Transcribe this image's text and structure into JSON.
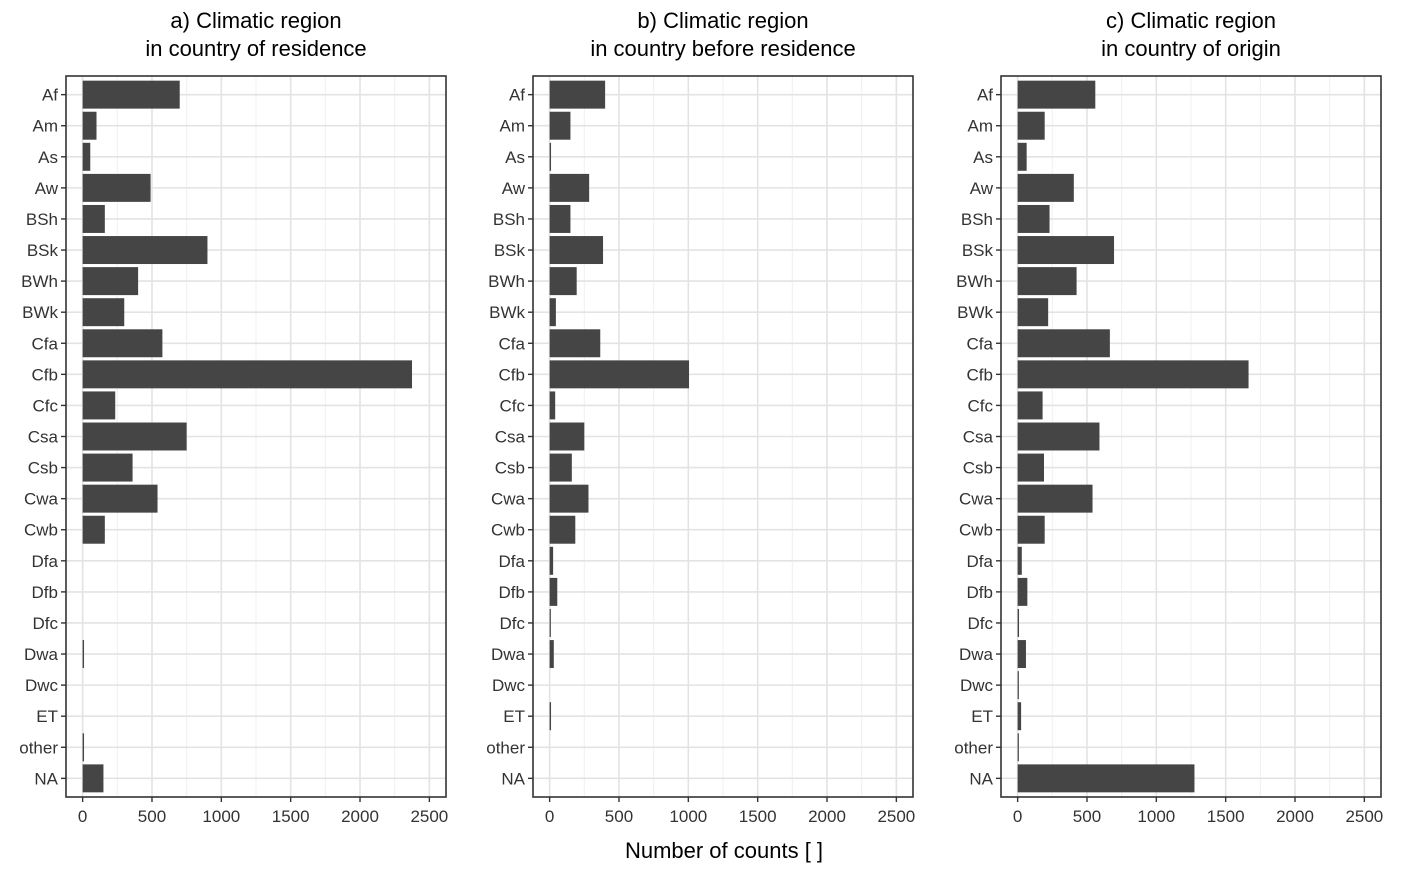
{
  "chart_data": [
    {
      "type": "bar",
      "orientation": "horizontal",
      "title": "a) Climatic region\nin country of residence",
      "categories": [
        "Af",
        "Am",
        "As",
        "Aw",
        "BSh",
        "BSk",
        "BWh",
        "BWk",
        "Cfa",
        "Cfb",
        "Cfc",
        "Csa",
        "Csb",
        "Cwa",
        "Cwb",
        "Dfa",
        "Dfb",
        "Dfc",
        "Dwa",
        "Dwc",
        "ET",
        "other",
        "NA"
      ],
      "values": [
        700,
        100,
        55,
        490,
        160,
        900,
        400,
        300,
        575,
        2375,
        235,
        750,
        360,
        540,
        160,
        0,
        0,
        0,
        10,
        0,
        0,
        10,
        150
      ],
      "xlim": [
        -120,
        2620
      ],
      "xticks": [
        0,
        500,
        1000,
        1500,
        2000,
        2500
      ],
      "grid": true,
      "color": "#454545"
    },
    {
      "type": "bar",
      "orientation": "horizontal",
      "title": "b) Climatic region\nin country before residence",
      "categories": [
        "Af",
        "Am",
        "As",
        "Aw",
        "BSh",
        "BSk",
        "BWh",
        "BWk",
        "Cfa",
        "Cfb",
        "Cfc",
        "Csa",
        "Csb",
        "Cwa",
        "Cwb",
        "Dfa",
        "Dfb",
        "Dfc",
        "Dwa",
        "Dwc",
        "ET",
        "other",
        "NA"
      ],
      "values": [
        400,
        150,
        10,
        285,
        150,
        385,
        195,
        45,
        365,
        1005,
        40,
        250,
        160,
        280,
        185,
        25,
        55,
        5,
        30,
        0,
        10,
        0,
        0
      ],
      "xlim": [
        -120,
        2620
      ],
      "xticks": [
        0,
        500,
        1000,
        1500,
        2000,
        2500
      ],
      "grid": true,
      "color": "#454545"
    },
    {
      "type": "bar",
      "orientation": "horizontal",
      "title": "c) Climatic region\nin country of origin",
      "categories": [
        "Af",
        "Am",
        "As",
        "Aw",
        "BSh",
        "BSk",
        "BWh",
        "BWk",
        "Cfa",
        "Cfb",
        "Cfc",
        "Csa",
        "Csb",
        "Cwa",
        "Cwb",
        "Dfa",
        "Dfb",
        "Dfc",
        "Dwa",
        "Dwc",
        "ET",
        "other",
        "NA"
      ],
      "values": [
        560,
        195,
        65,
        405,
        230,
        695,
        425,
        220,
        665,
        1665,
        180,
        590,
        190,
        540,
        195,
        30,
        70,
        10,
        60,
        5,
        25,
        5,
        1275
      ],
      "xlim": [
        -120,
        2620
      ],
      "xticks": [
        0,
        500,
        1000,
        1500,
        2000,
        2500
      ],
      "grid": true,
      "color": "#454545"
    }
  ],
  "xlabel": "Number of counts [ ]"
}
